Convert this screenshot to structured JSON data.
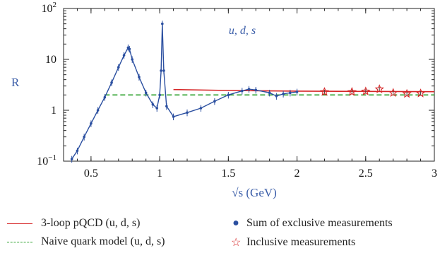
{
  "chart_data": {
    "type": "line",
    "title": "",
    "annotation": "u, d, s",
    "xlabel": "√s (GeV)",
    "ylabel": "R",
    "xlim": [
      0.3,
      3.0
    ],
    "ylim": [
      0.1,
      100
    ],
    "yscale": "log",
    "x_ticks": [
      {
        "value": 0.5,
        "label": "0.5"
      },
      {
        "value": 1.0,
        "label": "1"
      },
      {
        "value": 1.5,
        "label": "1.5"
      },
      {
        "value": 2.0,
        "label": "2"
      },
      {
        "value": 2.5,
        "label": "2.5"
      },
      {
        "value": 3.0,
        "label": "3"
      }
    ],
    "y_ticks": [
      {
        "value": 0.1,
        "label_base": "10",
        "label_exp": "−1"
      },
      {
        "value": 1,
        "label": "1"
      },
      {
        "value": 10,
        "label": "10"
      },
      {
        "value": 100,
        "label_base": "10",
        "label_exp": "2"
      }
    ],
    "legend_placement": "below",
    "series": [
      {
        "name": "3-loop pQCD (u, d, s)",
        "style": "line",
        "color": "#d62728",
        "x": [
          1.1,
          1.5,
          2.0,
          2.5,
          3.0
        ],
        "y": [
          2.55,
          2.45,
          2.38,
          2.35,
          2.32
        ]
      },
      {
        "name": "Naive quark model (u, d, s)",
        "style": "dashed",
        "color": "#2ca02c",
        "x": [
          0.6,
          3.0
        ],
        "y": [
          2.0,
          2.0
        ]
      },
      {
        "name": "Sum of exclusive measurements",
        "style": "points",
        "color": "#2b4fa0",
        "x": [
          0.36,
          0.4,
          0.45,
          0.5,
          0.55,
          0.6,
          0.65,
          0.7,
          0.74,
          0.77,
          0.78,
          0.8,
          0.85,
          0.9,
          0.95,
          0.98,
          1.0,
          1.01,
          1.019,
          1.03,
          1.05,
          1.1,
          1.2,
          1.3,
          1.4,
          1.5,
          1.6,
          1.65,
          1.7,
          1.8,
          1.85,
          1.9,
          1.95,
          2.0
        ],
        "y": [
          0.11,
          0.16,
          0.3,
          0.55,
          1.0,
          1.8,
          3.5,
          7.0,
          12,
          17,
          16,
          10,
          4.5,
          2.2,
          1.3,
          1.1,
          2.0,
          6.0,
          50,
          6.0,
          1.2,
          0.75,
          0.9,
          1.1,
          1.5,
          2.0,
          2.4,
          2.6,
          2.5,
          2.2,
          1.9,
          2.1,
          2.2,
          2.3
        ]
      },
      {
        "name": "Inclusive measurements",
        "style": "stars",
        "color": "#d62728",
        "x": [
          2.2,
          2.4,
          2.5,
          2.6,
          2.7,
          2.8,
          2.9
        ],
        "y": [
          2.3,
          2.3,
          2.35,
          2.6,
          2.2,
          2.1,
          2.15
        ]
      }
    ]
  }
}
